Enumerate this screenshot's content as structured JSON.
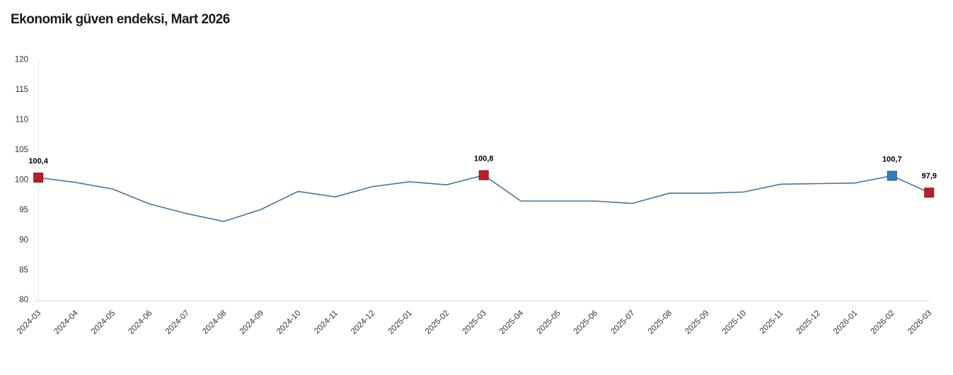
{
  "chart_data": {
    "type": "line",
    "title": "Ekonomik güven endeksi, Mart 2026",
    "categories": [
      "2024-03",
      "2024-04",
      "2024-05",
      "2024-06",
      "2024-07",
      "2024-08",
      "2024-09",
      "2024-10",
      "2024-11",
      "2024-12",
      "2025-01",
      "2025-02",
      "2025-03",
      "2025-04",
      "2025-05",
      "2025-06",
      "2025-07",
      "2025-08",
      "2025-09",
      "2025-10",
      "2025-11",
      "2025-12",
      "2026-01",
      "2026-02",
      "2026-03"
    ],
    "values": [
      100.4,
      99.6,
      98.5,
      96.0,
      94.4,
      93.1,
      95.1,
      98.1,
      97.2,
      98.9,
      99.7,
      99.2,
      100.8,
      96.5,
      96.5,
      96.5,
      96.1,
      97.8,
      97.8,
      98.0,
      99.3,
      99.4,
      99.5,
      100.7,
      97.9
    ],
    "xlabel": "",
    "ylabel": "",
    "ylim": [
      80,
      120
    ],
    "ytick_step": 5,
    "yticks": [
      80,
      85,
      90,
      95,
      100,
      105,
      110,
      115,
      120
    ],
    "grid": false,
    "legend_position": "none",
    "line_color": "#44759d",
    "axis_label_color": "#333333",
    "x_axis_line_color": "#d8d8d8",
    "y_axis_line_color": "#e7e7e7",
    "data_label_color": "#000000",
    "labeled_points": [
      {
        "index": 0,
        "label": "100,4",
        "marker_color": "#b5212a",
        "marker_border_color": "#87161d"
      },
      {
        "index": 12,
        "label": "100,8",
        "marker_color": "#b5212a",
        "marker_border_color": "#87161d"
      },
      {
        "index": 23,
        "label": "100,7",
        "marker_color": "#2f7ec1",
        "marker_border_color": "#205c90"
      },
      {
        "index": 24,
        "label": "97,9",
        "marker_color": "#b5212a",
        "marker_border_color": "#87161d"
      }
    ]
  }
}
